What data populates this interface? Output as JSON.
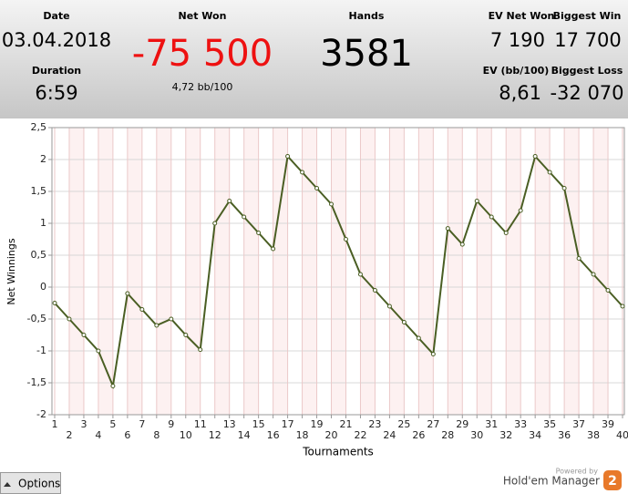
{
  "header": {
    "date_label": "Date",
    "date": "03.04.2018",
    "duration_label": "Duration",
    "duration": "6:59",
    "net_won_label": "Net Won",
    "net_won": "-75 500",
    "bb100": "4,72 bb/100",
    "hands_label": "Hands",
    "hands": "3581",
    "ev_net_won_label": "EV Net Won",
    "ev_net_won": "7 190",
    "biggest_win_label": "Biggest Win",
    "biggest_win": "17 700",
    "ev_bb100_label": "EV (bb/100)",
    "ev_bb100": "8,61",
    "biggest_loss_label": "Biggest Loss",
    "biggest_loss": "-32 070"
  },
  "chart_data": {
    "type": "line",
    "x_label": "Tournaments",
    "y_label": "Net Winnings",
    "x": [
      1,
      2,
      3,
      4,
      5,
      6,
      7,
      8,
      9,
      10,
      11,
      12,
      13,
      14,
      15,
      16,
      17,
      18,
      19,
      20,
      21,
      22,
      23,
      24,
      25,
      26,
      27,
      28,
      29,
      30,
      31,
      32,
      33,
      34,
      35,
      36,
      37,
      38,
      39,
      40
    ],
    "values": [
      -0.25,
      -0.5,
      -0.75,
      -1.0,
      -1.55,
      -0.1,
      -0.35,
      -0.6,
      -0.5,
      -0.75,
      -0.98,
      1.0,
      1.35,
      1.1,
      0.85,
      0.6,
      2.05,
      1.8,
      1.55,
      1.3,
      0.75,
      0.2,
      -0.05,
      -0.3,
      -0.55,
      -0.8,
      -1.05,
      0.92,
      0.67,
      1.35,
      1.1,
      0.85,
      1.2,
      2.05,
      1.8,
      1.55,
      0.45,
      0.2,
      -0.05,
      -0.3
    ],
    "color": "#4a5e23",
    "xlim": [
      1,
      40
    ],
    "xticks": [
      1,
      2,
      3,
      4,
      5,
      6,
      7,
      8,
      9,
      10,
      11,
      12,
      13,
      14,
      15,
      16,
      17,
      18,
      19,
      20,
      21,
      22,
      23,
      24,
      25,
      26,
      27,
      28,
      29,
      30,
      31,
      32,
      33,
      34,
      35,
      36,
      37,
      38,
      39,
      40
    ],
    "ylim": [
      -2,
      2.5
    ],
    "yticks": [
      {
        "value": 2.5,
        "label": "2,5"
      },
      2,
      {
        "value": 1.5,
        "label": "1,5"
      },
      1,
      {
        "value": 0.5,
        "label": "0,5"
      },
      0,
      {
        "value": -0.5,
        "label": "-0,5"
      },
      -1,
      {
        "value": -1.5,
        "label": "-1,5"
      },
      -2
    ],
    "grid": true
  },
  "footer": {
    "options": "Options",
    "powered_by": "Powered by",
    "brand": "Hold'em Manager",
    "brand_version": "2"
  }
}
